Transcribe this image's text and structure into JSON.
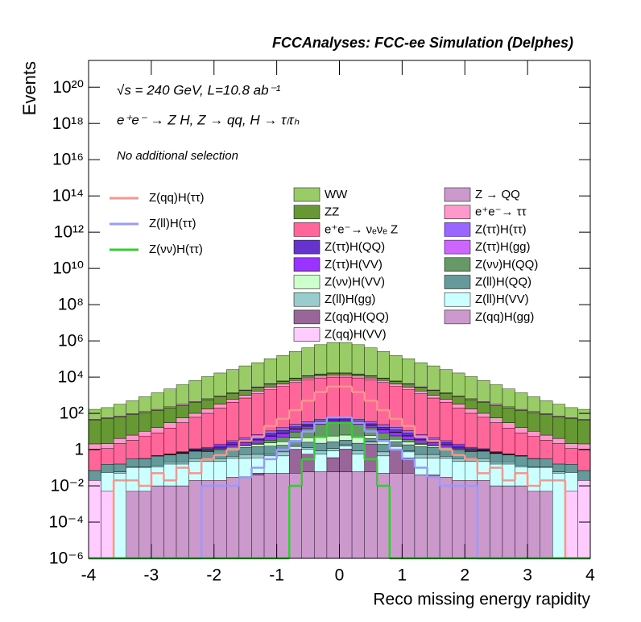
{
  "chart_data": {
    "type": "histogram",
    "stacked": true,
    "log_y": true,
    "grid": false,
    "title": "FCCAnalyses: FCC-ee Simulation (Delphes)",
    "annotations": [
      "√s = 240 GeV, L=10.8 ab⁻¹",
      "e⁺e⁻ → Z H, Z → qq, H → τₗτₕ",
      "No additional selection"
    ],
    "xlabel": "Reco missing energy rapidity",
    "ylabel": "Events",
    "xlim": [
      -4,
      4
    ],
    "ylim": [
      1e-06,
      3e+21
    ],
    "xticks": [
      -4,
      -3,
      -2,
      -1,
      0,
      1,
      2,
      3,
      4
    ],
    "yticks": [
      {
        "value": 1e-06,
        "label": "10⁻⁶"
      },
      {
        "value": 0.0001,
        "label": "10⁻⁴"
      },
      {
        "value": 0.01,
        "label": "10⁻²"
      },
      1,
      {
        "value": 100.0,
        "label": "10²"
      },
      {
        "value": 10000.0,
        "label": "10⁴"
      },
      {
        "value": 1000000.0,
        "label": "10⁶"
      },
      {
        "value": 100000000.0,
        "label": "10⁸"
      },
      {
        "value": 10000000000.0,
        "label": "10¹⁰"
      },
      {
        "value": 1000000000000.0,
        "label": "10¹²"
      },
      {
        "value": 100000000000000.0,
        "label": "10¹⁴"
      },
      {
        "value": 1e+16,
        "label": "10¹⁶"
      },
      {
        "value": 1e+18,
        "label": "10¹⁸"
      },
      {
        "value": 1e+20,
        "label": "10²⁰"
      }
    ],
    "bins": [
      -4,
      -3.8,
      -3.6,
      -3.4,
      -3.2,
      -3,
      -2.8,
      -2.6,
      -2.4,
      -2.2,
      -2,
      -1.8,
      -1.6,
      -1.4,
      -1.2,
      -1,
      -0.8,
      -0.6,
      -0.4,
      -0.2,
      0,
      0.2,
      0.4,
      0.6,
      0.8,
      1,
      1.2,
      1.4,
      1.6,
      1.8,
      2,
      2.2,
      2.4,
      2.6,
      2.8,
      3,
      3.2,
      3.4,
      3.6,
      3.8,
      4
    ],
    "series": [
      {
        "name": "WW",
        "color": "#99cc66",
        "values": [
          120,
          150,
          250,
          400,
          700,
          1200,
          2000,
          3500,
          6000,
          10000.0,
          16000.0,
          25000.0,
          40000.0,
          60000.0,
          100000.0,
          150000.0,
          250000.0,
          400000.0,
          600000.0,
          800000.0,
          800000.0,
          600000.0,
          400000.0,
          250000.0,
          150000.0,
          100000.0,
          60000.0,
          40000.0,
          25000.0,
          16000.0,
          10000.0,
          6000,
          3500,
          2000,
          1200,
          700,
          400,
          250,
          150,
          120
        ]
      },
      {
        "name": "Z → QQ",
        "color": "#cc99cc",
        "values": [
          5,
          6,
          8,
          10,
          15,
          20,
          30,
          40,
          50,
          70,
          90,
          120,
          150,
          200,
          250,
          300,
          350,
          400,
          450,
          500,
          500,
          450,
          400,
          350,
          300,
          250,
          200,
          150,
          120,
          90,
          70,
          50,
          40,
          30,
          20,
          15,
          10,
          8,
          6,
          5
        ]
      },
      {
        "name": "ZZ",
        "color": "#669933",
        "values": [
          40,
          50,
          60,
          80,
          100,
          130,
          170,
          220,
          300,
          400,
          500,
          650,
          800,
          1000,
          1300,
          1600,
          2000,
          2500,
          3000,
          3500,
          3500,
          3000,
          2500,
          2000,
          1600,
          1300,
          1000,
          800,
          650,
          500,
          400,
          300,
          220,
          170,
          130,
          100,
          80,
          60,
          50,
          40
        ]
      },
      {
        "name": "e⁺e⁻→ ττ",
        "color": "#ff99cc",
        "values": [
          1,
          1,
          2,
          3,
          5,
          8,
          15,
          25,
          40,
          70,
          120,
          200,
          300,
          500,
          800,
          1200,
          1600,
          2000,
          2500,
          3000,
          3000,
          2500,
          2000,
          1600,
          1200,
          800,
          500,
          300,
          200,
          120,
          70,
          40,
          25,
          15,
          8,
          5,
          3,
          2,
          1,
          1
        ]
      },
      {
        "name": "e⁺e⁻→ νₑνₑ Z",
        "color": "#ff6699",
        "values": [
          1,
          1,
          2,
          3,
          5,
          8,
          15,
          30,
          60,
          100,
          200,
          400,
          700,
          1200,
          2000,
          3000,
          5000,
          7000,
          9000,
          10000,
          10000,
          9000,
          7000,
          5000,
          3000,
          2000,
          1200,
          700,
          400,
          200,
          100,
          60,
          30,
          15,
          8,
          5,
          3,
          2,
          1,
          1
        ]
      },
      {
        "name": "Z(ττ)H(ττ)",
        "color": "#9966ff",
        "values": [
          0,
          0,
          0,
          0,
          0,
          0.01,
          0.02,
          0.05,
          0.1,
          0.2,
          0.4,
          0.7,
          1,
          2,
          3,
          5,
          7,
          9,
          10,
          12,
          12,
          10,
          9,
          7,
          5,
          3,
          2,
          1,
          0.7,
          0.4,
          0.2,
          0.1,
          0.05,
          0.02,
          0.01,
          0,
          0,
          0,
          0,
          0
        ]
      },
      {
        "name": "Z(ττ)H(QQ)",
        "color": "#6633cc",
        "values": [
          0,
          0,
          0,
          0,
          0,
          0.01,
          0.02,
          0.04,
          0.08,
          0.15,
          0.3,
          0.5,
          0.8,
          1.2,
          2,
          3,
          4,
          5,
          6,
          6,
          6,
          6,
          5,
          4,
          3,
          2,
          1.2,
          0.8,
          0.5,
          0.3,
          0.15,
          0.08,
          0.04,
          0.02,
          0.01,
          0,
          0,
          0,
          0,
          0
        ]
      },
      {
        "name": "Z(ττ)H(gg)",
        "color": "#cc66ff",
        "values": [
          0,
          0,
          0,
          0,
          0.01,
          0.01,
          0.02,
          0.03,
          0.05,
          0.08,
          0.1,
          0.15,
          0.2,
          0.3,
          0.4,
          0.5,
          0.6,
          0.7,
          0.8,
          0.9,
          0.9,
          0.8,
          0.7,
          0.6,
          0.5,
          0.4,
          0.3,
          0.2,
          0.15,
          0.1,
          0.08,
          0.05,
          0.03,
          0.02,
          0.01,
          0.01,
          0,
          0,
          0,
          0
        ]
      },
      {
        "name": "Z(ττ)H(VV)",
        "color": "#9933ff",
        "values": [
          0,
          0,
          0,
          0,
          0,
          0,
          0.01,
          0.02,
          0.05,
          0.1,
          0.2,
          0.4,
          0.7,
          1,
          2,
          3,
          4,
          5,
          6,
          7,
          7,
          6,
          5,
          4,
          3,
          2,
          1,
          0.7,
          0.4,
          0.2,
          0.1,
          0.05,
          0.02,
          0.01,
          0,
          0,
          0,
          0,
          0,
          0
        ]
      },
      {
        "name": "Z(νν)H(QQ)",
        "color": "#669966",
        "values": [
          0,
          0,
          0,
          0,
          0,
          0,
          0,
          0,
          0,
          0,
          0.01,
          0.03,
          0.1,
          0.3,
          1,
          2,
          5,
          10,
          20,
          30,
          30,
          20,
          10,
          5,
          2,
          1,
          0.3,
          0.1,
          0.03,
          0.01,
          0,
          0,
          0,
          0,
          0,
          0,
          0,
          0,
          0,
          0
        ]
      },
      {
        "name": "Z(νν)H(VV)",
        "color": "#ccffcc",
        "values": [
          0,
          0,
          0,
          0,
          0,
          0,
          0,
          0.01,
          0.02,
          0.05,
          0.1,
          0.2,
          0.3,
          0.5,
          0.8,
          1,
          1.5,
          2,
          2.5,
          3,
          3,
          2.5,
          2,
          1.5,
          1,
          0.8,
          0.5,
          0.3,
          0.2,
          0.1,
          0.05,
          0.02,
          0.01,
          0,
          0,
          0,
          0,
          0,
          0,
          0
        ]
      },
      {
        "name": "Z(ll)H(QQ)",
        "color": "#669999",
        "values": [
          0.05,
          0.1,
          0.1,
          0.2,
          0.2,
          0.3,
          0.3,
          0.4,
          0.5,
          0.5,
          0.6,
          0.7,
          0.8,
          0.9,
          1,
          1,
          1.2,
          1.3,
          1.4,
          1.5,
          1.5,
          1.4,
          1.3,
          1.2,
          1,
          1,
          0.9,
          0.8,
          0.7,
          0.6,
          0.5,
          0.5,
          0.4,
          0.3,
          0.3,
          0.2,
          0.2,
          0.1,
          0.1,
          0.05
        ]
      },
      {
        "name": "Z(ll)H(gg)",
        "color": "#99cccc",
        "values": [
          0,
          0,
          0.01,
          0.01,
          0.01,
          0.03,
          0.05,
          0.05,
          0.1,
          0.05,
          0.1,
          0.1,
          0.2,
          0.2,
          0.1,
          0.3,
          0.3,
          0.2,
          0.3,
          0.3,
          0.3,
          0.3,
          0.2,
          0.3,
          0.3,
          0.1,
          0.2,
          0.2,
          0.1,
          0.1,
          0.05,
          0.1,
          0.05,
          0.05,
          0.03,
          0.01,
          0.01,
          0.01,
          0,
          0
        ]
      },
      {
        "name": "Z(ll)H(VV)",
        "color": "#ccffff",
        "values": [
          0,
          0.05,
          0.05,
          0.1,
          0.1,
          0.1,
          0.15,
          0.15,
          0.2,
          0.2,
          0.2,
          0.3,
          0.3,
          0.3,
          0.4,
          0.4,
          0.4,
          0.5,
          0.5,
          0.5,
          0.5,
          0.5,
          0.5,
          0.4,
          0.4,
          0.4,
          0.3,
          0.3,
          0.3,
          0.2,
          0.2,
          0.2,
          0.15,
          0.15,
          0.1,
          0.1,
          0.1,
          0.05,
          0.05,
          0
        ]
      },
      {
        "name": "Z(qq)H(QQ)",
        "color": "#996699",
        "values": [
          0,
          0,
          0,
          0,
          0,
          0,
          0,
          0,
          0,
          0,
          0,
          0,
          0,
          0.01,
          0,
          0,
          1,
          0.5,
          0,
          0.3,
          1,
          0,
          2,
          0,
          1,
          0.3,
          0,
          0.01,
          0,
          0,
          0,
          0,
          0,
          0,
          0,
          0,
          0,
          0,
          0,
          0
        ]
      },
      {
        "name": "Z(qq)H(gg)",
        "color": "#cc99cc",
        "values": [
          0,
          0,
          0,
          0.005,
          0.005,
          0.01,
          0.01,
          0.01,
          0.02,
          0.02,
          0.02,
          0.03,
          0.03,
          0.04,
          0.05,
          0.05,
          0.05,
          0.06,
          0.06,
          0.06,
          0.06,
          0.06,
          0.06,
          0.05,
          0.05,
          0.05,
          0.04,
          0.03,
          0.03,
          0.02,
          0.02,
          0.02,
          0.01,
          0.01,
          0.01,
          0.005,
          0.005,
          0,
          0,
          0
        ]
      },
      {
        "name": "Z(qq)H(VV)",
        "color": "#ffccff",
        "values": [
          0.02,
          0.005,
          0,
          0,
          0,
          0,
          0,
          0,
          0,
          0,
          0,
          0,
          0,
          0,
          0,
          0,
          0,
          0,
          0,
          0,
          0,
          0,
          0,
          0,
          0,
          0,
          0,
          0,
          0,
          0,
          0,
          0,
          0,
          0,
          0,
          0,
          0,
          0,
          0.005,
          0.02
        ]
      }
    ],
    "line_series": [
      {
        "name": "Z(qq)H(ττ)",
        "color": "#f4978e",
        "values": [
          0,
          0,
          0.02,
          0.02,
          0.01,
          0.05,
          0.02,
          0.1,
          0.05,
          0.3,
          0.5,
          1,
          3,
          5,
          20,
          50,
          150,
          500,
          1500,
          3000,
          3000,
          1500,
          500,
          150,
          50,
          20,
          5,
          3,
          1,
          0.5,
          0.3,
          0.05,
          0.1,
          0.02,
          0.05,
          0.01,
          0.02,
          0.02,
          0,
          0
        ]
      },
      {
        "name": "Z(ll)H(ττ)",
        "color": "#9999ff",
        "values": [
          0,
          0,
          0,
          0,
          0,
          0,
          0,
          0,
          0,
          0.01,
          0.01,
          0.01,
          0.03,
          0.1,
          0.3,
          1,
          3,
          10,
          30,
          60,
          60,
          30,
          10,
          3,
          1,
          0.3,
          0.1,
          0.03,
          0.01,
          0.01,
          0.01,
          0,
          0,
          0,
          0,
          0,
          0,
          0,
          0,
          0
        ]
      },
      {
        "name": "Z(νν)H(ττ)",
        "color": "#33cc33",
        "values": [
          0,
          0,
          0,
          0,
          0,
          0,
          0,
          0,
          0,
          0,
          0,
          0,
          0,
          0,
          0,
          0,
          0.01,
          0.3,
          5,
          30,
          30,
          5,
          0.3,
          0.01,
          0,
          0,
          0,
          0,
          0,
          0,
          0,
          0,
          0,
          0,
          0,
          0,
          0,
          0,
          0,
          0
        ]
      }
    ]
  }
}
